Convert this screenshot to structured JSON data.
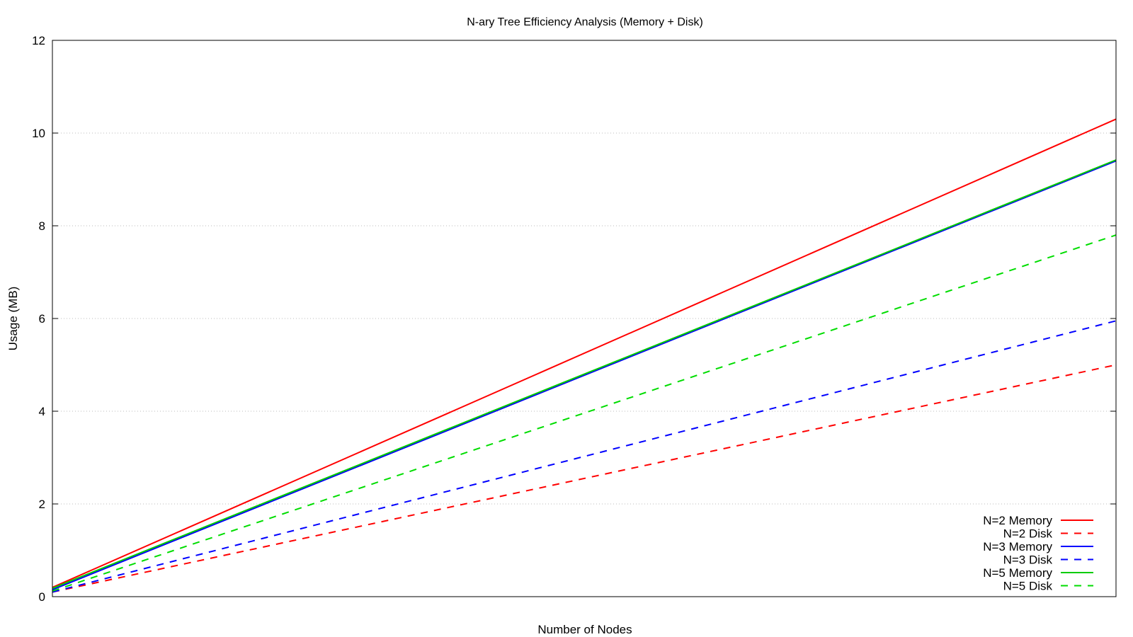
{
  "chart_data": {
    "type": "line",
    "title": "N-ary Tree Efficiency Analysis (Memory + Disk)",
    "xlabel": "Number of Nodes",
    "ylabel": "Usage (MB)",
    "ylim": [
      0,
      12
    ],
    "yticks": [
      "0",
      "2",
      "4",
      "6",
      "8",
      "10",
      "12"
    ],
    "x_tick_labels_shown": false,
    "grid": "horizontal dotted",
    "legend_position": "bottom-right",
    "x": [
      0,
      1
    ],
    "series": [
      {
        "name": "N=2 Memory",
        "color": "#ff0000",
        "dash": "solid",
        "values": [
          0.2,
          10.3
        ]
      },
      {
        "name": "N=2 Disk",
        "color": "#ff0000",
        "dash": "dashed",
        "values": [
          0.1,
          5.0
        ]
      },
      {
        "name": "N=3 Memory",
        "color": "#0000ff",
        "dash": "solid",
        "values": [
          0.15,
          9.4
        ]
      },
      {
        "name": "N=3 Disk",
        "color": "#0000ff",
        "dash": "dashed",
        "values": [
          0.1,
          5.95
        ]
      },
      {
        "name": "N=5 Memory",
        "color": "#00cc00",
        "dash": "solid",
        "values": [
          0.18,
          9.42
        ]
      },
      {
        "name": "N=5 Disk",
        "color": "#00dd00",
        "dash": "dashed",
        "values": [
          0.12,
          7.8
        ]
      }
    ]
  }
}
